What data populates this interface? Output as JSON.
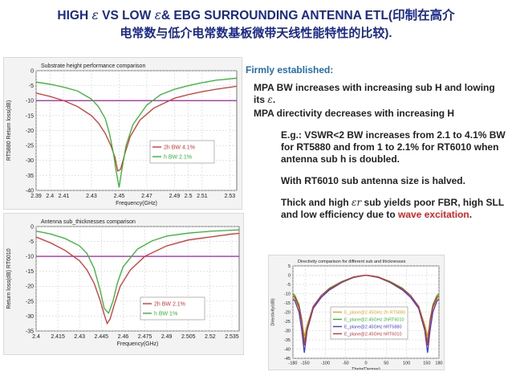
{
  "title": {
    "line1_a": "HIGH",
    "eps1": "ε",
    "line1_b": "VS LOW",
    "eps2": "ε",
    "line1_c": "& EBG SURROUNDING ANTENNA ETL(印制在高介",
    "line2": "电常数与低介电常数基板微带天线性能特性的比较)."
  },
  "text": {
    "firm": "Firmly established:",
    "p1a": "MPA BW increases with increasing sub H and lowing its",
    "p1eps": "ε",
    "p1b": ".",
    "p2": "MPA directivity decreases with increasing H",
    "p3": "E.g.: VSWR<2 BW increases from 2.1 to 4.1% BW for RT5880 and  from 1 to 2.1% for RT6010 when antenna sub h is doubled.",
    "p4": "With RT6010 sub antenna size is halved.",
    "p5a": "Thick and high",
    "p5eps": "εr",
    "p5b": "sub yields poor FBR, high SLL and low efficiency due to",
    "p5red": "wave excitation",
    "p5c": "."
  },
  "chart_data": [
    {
      "type": "line",
      "title": "Substrate height performance comparison",
      "xlabel": "Frequency(GHz)",
      "ylabel": "RT5880 Return loss(dB)",
      "xlim": [
        2.39,
        2.535
      ],
      "ylim": [
        -40,
        0
      ],
      "xticks": [
        2.39,
        2.4,
        2.41,
        2.43,
        2.45,
        2.47,
        2.49,
        2.5,
        2.51,
        2.53
      ],
      "xtick_labels": [
        "2.39",
        "2.4",
        "2.41",
        "2.43",
        "2.45",
        "2.47",
        "2.49",
        "2.5",
        "2.51",
        "2.53"
      ],
      "yticks": [
        0,
        -5,
        -10,
        -15,
        -20,
        -25,
        -30,
        -35,
        -40
      ],
      "ytick_labels": [
        "0",
        "-5",
        "-10",
        "-15",
        "-20",
        "-25",
        "-30",
        "-35",
        "-40"
      ],
      "hline": -10,
      "grid": true,
      "legend_position": "center-right",
      "series": [
        {
          "name": "2h BW 4.1%",
          "color": "#e03030",
          "x": [
            2.39,
            2.4,
            2.41,
            2.42,
            2.43,
            2.435,
            2.44,
            2.444,
            2.447,
            2.449,
            2.451,
            2.454,
            2.458,
            2.465,
            2.475,
            2.49,
            2.5,
            2.51,
            2.52,
            2.535
          ],
          "y": [
            -7.5,
            -8.6,
            -10.0,
            -12.0,
            -15.0,
            -17.5,
            -21.0,
            -25.0,
            -29.0,
            -33.5,
            -33.0,
            -28.0,
            -22.0,
            -16.5,
            -12.5,
            -9.2,
            -8.0,
            -7.0,
            -6.2,
            -5.2
          ]
        },
        {
          "name": "h  BW 2.1%",
          "color": "#2db82d",
          "x": [
            2.39,
            2.4,
            2.41,
            2.42,
            2.43,
            2.435,
            2.44,
            2.443,
            2.446,
            2.448,
            2.45,
            2.452,
            2.455,
            2.46,
            2.47,
            2.48,
            2.49,
            2.5,
            2.51,
            2.52,
            2.535
          ],
          "y": [
            -3.8,
            -4.5,
            -5.5,
            -6.8,
            -9.5,
            -12.0,
            -16.0,
            -21.0,
            -28.0,
            -34.0,
            -39.0,
            -33.0,
            -25.0,
            -18.0,
            -11.5,
            -8.0,
            -6.2,
            -5.0,
            -4.0,
            -3.2,
            -2.5
          ]
        }
      ]
    },
    {
      "type": "line",
      "title": "Antenna sub_thicknesses comparison",
      "xlabel": "Frequency(GHz)",
      "ylabel": "Return loss(dB) RT6010",
      "xlim": [
        2.4,
        2.54
      ],
      "ylim": [
        -35,
        0
      ],
      "xticks": [
        2.4,
        2.415,
        2.43,
        2.445,
        2.46,
        2.475,
        2.49,
        2.505,
        2.52,
        2.535
      ],
      "xtick_labels": [
        "2.4",
        "2.415",
        "2.43",
        "2.445",
        "2.46",
        "2.475",
        "2.49",
        "2.505",
        "2.52",
        "2.535"
      ],
      "yticks": [
        0,
        -5,
        -10,
        -15,
        -20,
        -25,
        -30,
        -35
      ],
      "ytick_labels": [
        "0",
        "-5",
        "-10",
        "-15",
        "-20",
        "-25",
        "-30",
        "-35"
      ],
      "hline": -10,
      "grid": true,
      "legend_position": "center-right",
      "series": [
        {
          "name": "2h BW 2.1%",
          "color": "#e03030",
          "x": [
            2.4,
            2.41,
            2.42,
            2.43,
            2.435,
            2.44,
            2.444,
            2.447,
            2.449,
            2.451,
            2.454,
            2.458,
            2.465,
            2.475,
            2.49,
            2.505,
            2.52,
            2.535,
            2.54
          ],
          "y": [
            -3.5,
            -5.5,
            -8.0,
            -11.5,
            -14.5,
            -19.0,
            -24.5,
            -29.5,
            -32.5,
            -31.0,
            -26.0,
            -20.0,
            -14.5,
            -10.0,
            -6.5,
            -4.5,
            -3.5,
            -2.5,
            -2.3
          ]
        },
        {
          "name": "h BW  1%",
          "color": "#2db82d",
          "x": [
            2.4,
            2.41,
            2.42,
            2.43,
            2.435,
            2.44,
            2.444,
            2.447,
            2.45,
            2.453,
            2.456,
            2.46,
            2.47,
            2.48,
            2.49,
            2.505,
            2.52,
            2.535,
            2.54
          ],
          "y": [
            -1.5,
            -2.5,
            -4.0,
            -6.5,
            -9.0,
            -14.0,
            -21.0,
            -27.5,
            -29.0,
            -25.0,
            -19.0,
            -13.5,
            -7.5,
            -4.8,
            -3.2,
            -2.2,
            -1.6,
            -1.2,
            -1.1
          ]
        }
      ]
    },
    {
      "type": "line",
      "title": "Directivity comparison for different sub and thicknesses",
      "xlabel": "Theta(Degree)",
      "ylabel": "Directivity(dB)",
      "xlim": [
        -180,
        180
      ],
      "ylim": [
        -45,
        5
      ],
      "xticks": [
        -180,
        -150,
        -100,
        -50,
        0,
        50,
        100,
        150,
        180
      ],
      "xtick_labels": [
        "-180",
        "-150",
        "-100",
        "-50",
        "0",
        "50",
        "100",
        "150",
        "180"
      ],
      "yticks": [
        5,
        0,
        -5,
        -10,
        -15,
        -20,
        -25,
        -30,
        -35,
        -40,
        -45
      ],
      "ytick_labels": [
        "5",
        "0",
        "-5",
        "-10",
        "-15",
        "-20",
        "-25",
        "-30",
        "-35",
        "-40",
        "-45"
      ],
      "grid": true,
      "legend_position": "center",
      "series": [
        {
          "name": "E_plane@2.45GHz 2h RT5880",
          "color": "#e8a020",
          "x": [
            -180,
            -175,
            -165,
            -158,
            -152,
            -145,
            -130,
            -110,
            -90,
            -60,
            -30,
            0,
            30,
            60,
            90,
            110,
            130,
            145,
            152,
            158,
            165,
            175,
            180
          ],
          "y": [
            -12,
            -13,
            -18,
            -26,
            -33,
            -27,
            -17,
            -11,
            -8,
            -4,
            -1,
            0,
            -1,
            -4,
            -8,
            -11,
            -17,
            -27,
            -33,
            -26,
            -18,
            -13,
            -12
          ]
        },
        {
          "name": "E_plane@2.45GHz 2hRT6010",
          "color": "#2db82d",
          "x": [
            -180,
            -175,
            -165,
            -158,
            -152,
            -145,
            -130,
            -110,
            -90,
            -60,
            -30,
            0,
            30,
            60,
            90,
            110,
            130,
            145,
            152,
            158,
            165,
            175,
            180
          ],
          "y": [
            -10,
            -11,
            -16,
            -24,
            -36,
            -28,
            -17,
            -11,
            -7,
            -3.5,
            -1,
            0,
            -1,
            -3.5,
            -7,
            -11,
            -17,
            -28,
            -36,
            -24,
            -16,
            -11,
            -10
          ]
        },
        {
          "name": "E_plane@2.45GHz hRT5880",
          "color": "#3a3ae0",
          "x": [
            -180,
            -175,
            -165,
            -158,
            -152,
            -145,
            -130,
            -110,
            -90,
            -60,
            -30,
            0,
            30,
            60,
            90,
            110,
            130,
            145,
            152,
            158,
            165,
            175,
            180
          ],
          "y": [
            -13,
            -14,
            -20,
            -30,
            -42,
            -30,
            -18,
            -12,
            -8,
            -4,
            -1.2,
            0,
            -1.2,
            -4,
            -8,
            -12,
            -18,
            -30,
            -42,
            -30,
            -20,
            -14,
            -13
          ]
        },
        {
          "name": "E_plane@2.45GHz hRT6010",
          "color": "#d03030",
          "x": [
            -180,
            -175,
            -165,
            -158,
            -152,
            -145,
            -130,
            -110,
            -90,
            -60,
            -30,
            0,
            30,
            60,
            90,
            110,
            130,
            145,
            152,
            158,
            165,
            175,
            180
          ],
          "y": [
            -11,
            -12,
            -17,
            -25,
            -38,
            -29,
            -17,
            -11,
            -7.5,
            -3.8,
            -1,
            0,
            -1,
            -3.8,
            -7.5,
            -11,
            -17,
            -29,
            -38,
            -25,
            -17,
            -12,
            -11
          ]
        }
      ]
    }
  ]
}
